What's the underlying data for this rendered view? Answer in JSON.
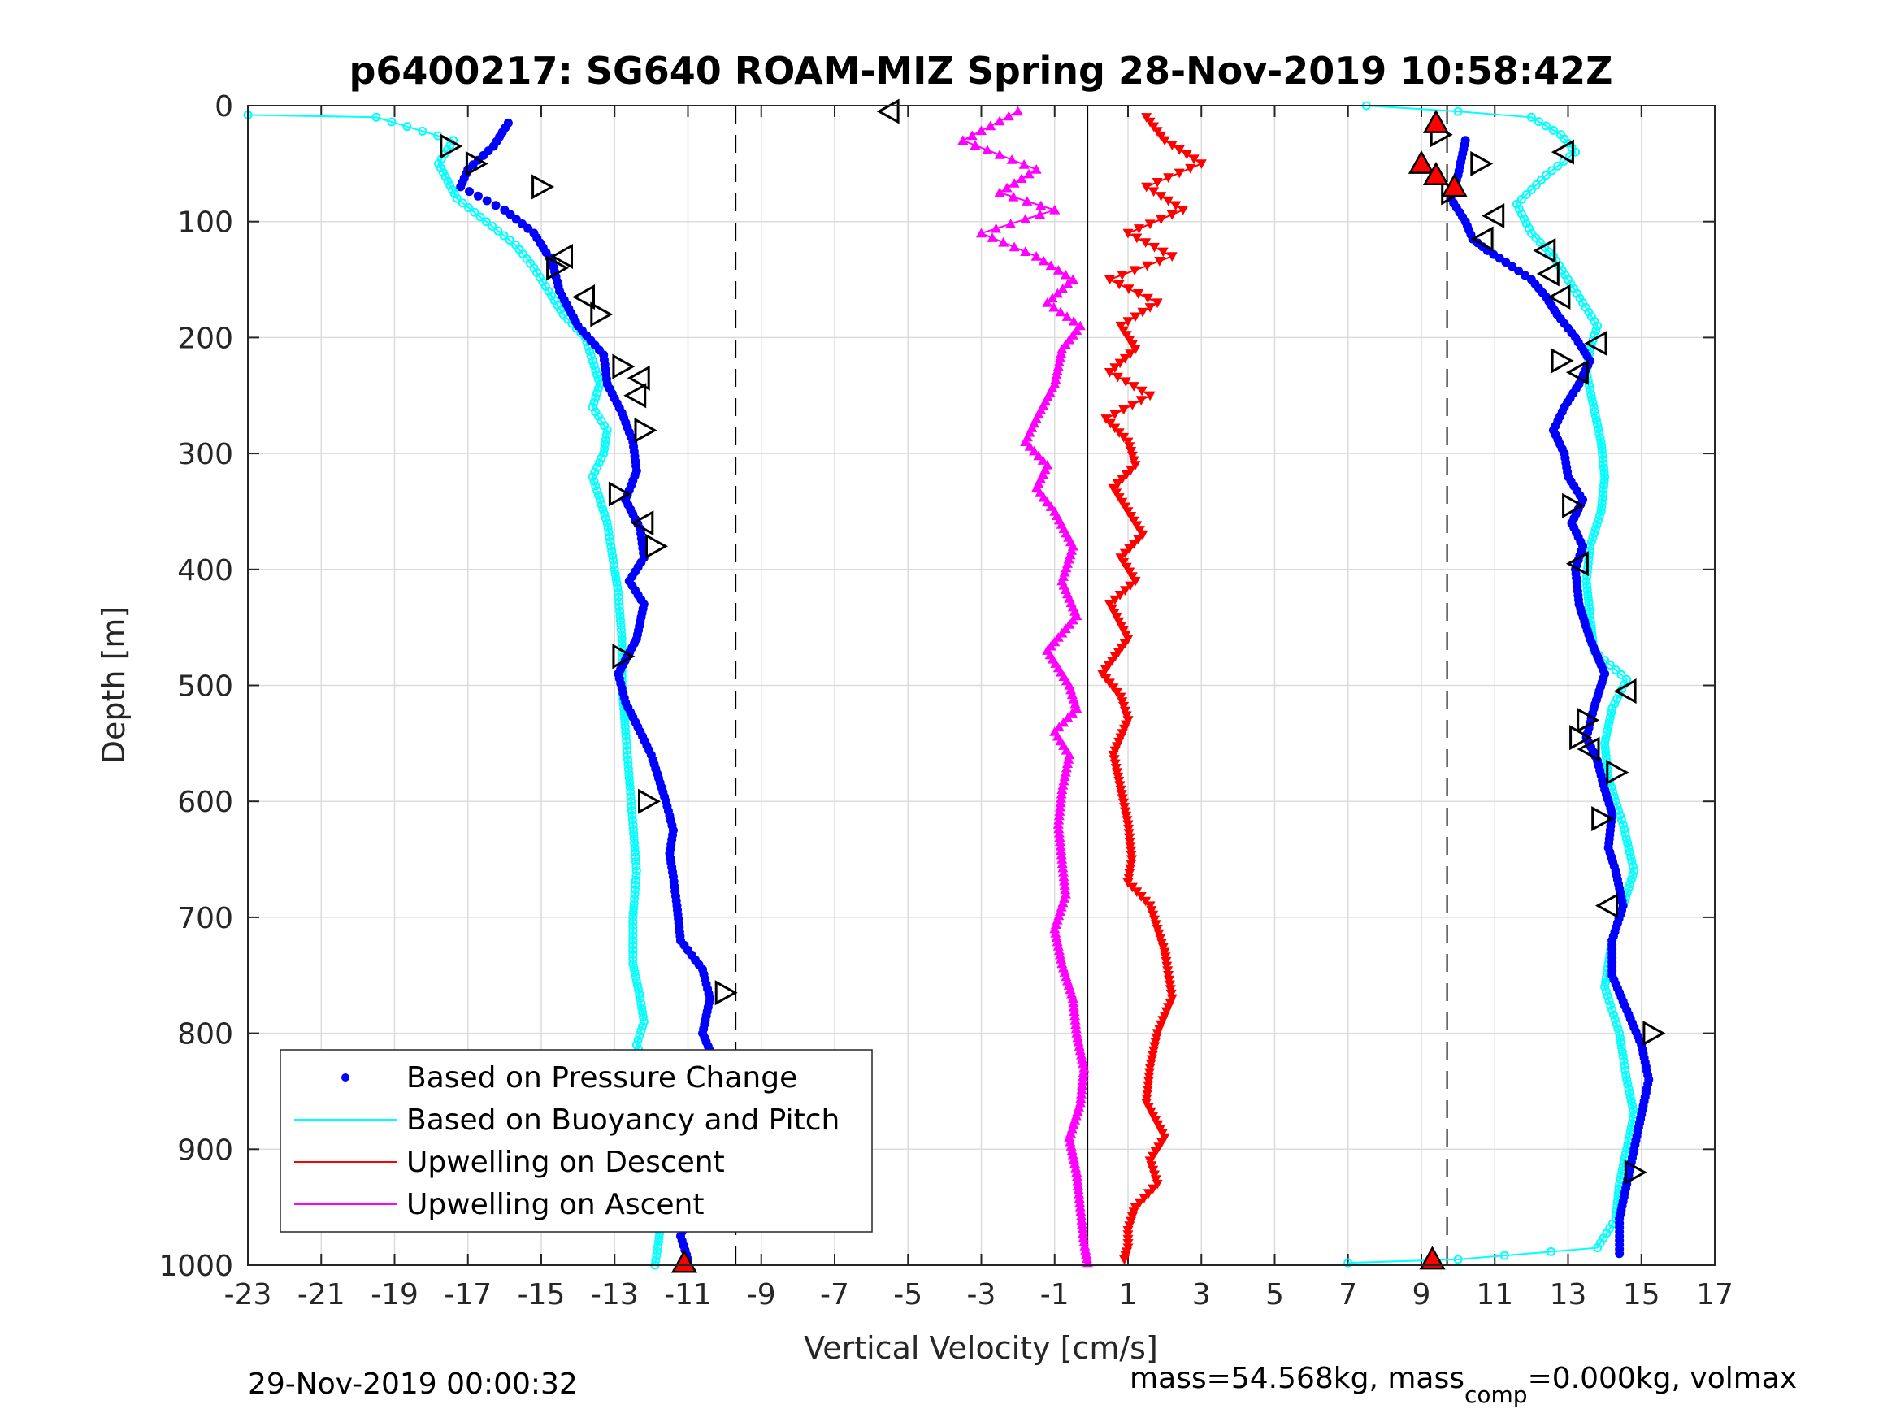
{
  "chart_data": {
    "type": "scatter",
    "title": "p6400217: SG640 ROAM-MIZ Spring 28-Nov-2019 10:58:42Z",
    "xlabel": "Vertical Velocity [cm/s]",
    "ylabel": "Depth [m]",
    "xlim": [
      -23,
      17
    ],
    "ylim": [
      1000,
      0
    ],
    "y_reversed": true,
    "grid": true,
    "x_ticks": [
      "-23",
      "-21",
      "-19",
      "-17",
      "-15",
      "-13",
      "-11",
      "-9",
      "-7",
      "-5",
      "-3",
      "-1",
      "1",
      "3",
      "5",
      "7",
      "9",
      "11",
      "13",
      "15",
      "17"
    ],
    "y_ticks": [
      "0",
      "100",
      "200",
      "300",
      "400",
      "500",
      "600",
      "700",
      "800",
      "900",
      "1000"
    ],
    "legend_position": "bottom-left",
    "reference_lines": {
      "dashed": [
        -9.7,
        9.7
      ],
      "solid": [
        -0.1
      ]
    },
    "series": [
      {
        "name": "Based on Pressure Change",
        "style": "dots",
        "color": "#0000ff",
        "segments": [
          {
            "x": [
              -15.9,
              -16.3,
              -17.0,
              -17.2,
              -16.0,
              -15.2,
              -14.7,
              -14.5,
              -14.0,
              -13.3,
              -13.2,
              -12.8,
              -12.5,
              -12.4,
              -12.7,
              -12.3,
              -12.2,
              -12.6,
              -12.2,
              -12.4,
              -12.9,
              -12.7,
              -12.3,
              -12.0,
              -11.6,
              -11.4,
              -11.5,
              -11.4,
              -11.3,
              -11.2,
              -10.6,
              -10.4,
              -10.6,
              -10.2,
              -10.0,
              -10.6,
              -11.0,
              -10.9,
              -11.2,
              -11.0
            ],
            "y": [
              15,
              35,
              55,
              70,
              90,
              110,
              135,
              160,
              190,
              215,
              240,
              265,
              290,
              315,
              340,
              365,
              390,
              410,
              430,
              460,
              490,
              515,
              540,
              560,
              600,
              625,
              645,
              665,
              690,
              720,
              745,
              770,
              800,
              830,
              860,
              880,
              920,
              950,
              975,
              995
            ]
          },
          {
            "x": [
              10.2,
              10.0,
              9.8,
              10.2,
              10.4,
              10.8,
              11.3,
              12.0,
              12.4,
              12.7,
              13.2,
              13.6,
              13.3,
              12.9,
              12.6,
              12.9,
              13.0,
              13.4,
              13.1,
              13.4,
              13.2,
              13.3,
              13.6,
              14.0,
              13.7,
              13.5,
              13.8,
              14.0,
              14.2,
              14.1,
              14.3,
              14.5,
              14.2,
              14.2,
              14.6,
              15.0,
              15.2,
              15.0,
              14.8,
              14.6,
              14.4,
              14.4
            ],
            "y": [
              30,
              60,
              80,
              100,
              115,
              125,
              135,
              150,
              165,
              180,
              200,
              220,
              240,
              260,
              280,
              300,
              320,
              340,
              360,
              380,
              400,
              430,
              460,
              490,
              520,
              545,
              565,
              590,
              610,
              640,
              660,
              690,
              720,
              750,
              780,
              810,
              840,
              870,
              900,
              930,
              960,
              990
            ]
          }
        ]
      },
      {
        "name": "Based on Buoyancy and Pitch",
        "style": "line-circles",
        "color": "#00ffff",
        "segments": [
          {
            "x": [
              -23.0,
              -19.5,
              -17.4,
              -17.8,
              -17.3,
              -16.5,
              -15.7,
              -15.2,
              -14.8,
              -14.4,
              -13.8,
              -13.6,
              -13.4,
              -13.6,
              -13.2,
              -13.3,
              -13.6,
              -13.4,
              -13.2,
              -13.1,
              -13.0,
              -12.9,
              -12.8,
              -12.8,
              -12.7,
              -12.6,
              -12.5,
              -12.4,
              -12.5,
              -12.5,
              -12.3,
              -12.2,
              -12.4,
              -12.0,
              -11.9,
              -11.8,
              -11.7,
              -11.8,
              -11.9
            ],
            "y": [
              8,
              10,
              30,
              50,
              80,
              100,
              120,
              140,
              160,
              180,
              200,
              220,
              240,
              260,
              280,
              300,
              320,
              340,
              360,
              380,
              400,
              420,
              460,
              500,
              540,
              580,
              620,
              660,
              700,
              740,
              770,
              790,
              810,
              840,
              880,
              920,
              950,
              980,
              1000
            ]
          },
          {
            "x": [
              7.5,
              10.0,
              12.0,
              12.8,
              13.2,
              12.4,
              11.6,
              12.0,
              12.6,
              13.0,
              13.4,
              13.8,
              13.6,
              13.5,
              13.7,
              13.9,
              14.0,
              13.9,
              13.6,
              13.5,
              13.6,
              13.7,
              14.6,
              14.2,
              14.0,
              14.1,
              14.5,
              14.8,
              14.5,
              14.2,
              14.0,
              14.4,
              14.6,
              14.8,
              14.6,
              14.4,
              14.3,
              13.8,
              10.0,
              7.0
            ],
            "y": [
              0,
              5,
              10,
              25,
              40,
              60,
              85,
              110,
              130,
              150,
              170,
              190,
              210,
              230,
              260,
              290,
              320,
              350,
              380,
              410,
              440,
              470,
              495,
              520,
              550,
              580,
              620,
              660,
              690,
              720,
              760,
              800,
              840,
              870,
              900,
              930,
              960,
              985,
              995,
              998
            ]
          }
        ]
      },
      {
        "name": "Upwelling on Descent",
        "style": "line-triangles-down",
        "color": "#ff0000",
        "segments": [
          {
            "x": [
              1.5,
              2.0,
              3.0,
              1.5,
              2.5,
              1.0,
              2.2,
              0.5,
              1.8,
              0.8,
              1.2,
              0.5,
              1.6,
              0.4,
              1.0,
              1.2,
              0.6,
              1.0,
              1.4,
              0.8,
              1.2,
              0.5,
              1.0,
              0.3,
              0.8,
              1.0,
              0.6,
              0.8,
              1.0,
              1.1,
              1.0,
              1.6,
              1.8,
              2.0,
              2.1,
              2.2,
              1.8,
              1.6,
              1.5,
              2.0,
              1.6,
              1.8,
              1.2,
              1.0,
              1.0,
              0.9
            ],
            "y": [
              10,
              30,
              50,
              70,
              90,
              110,
              130,
              150,
              170,
              190,
              210,
              230,
              250,
              270,
              290,
              310,
              330,
              350,
              370,
              390,
              410,
              430,
              460,
              490,
              510,
              530,
              560,
              590,
              620,
              650,
              670,
              690,
              710,
              730,
              750,
              770,
              800,
              830,
              860,
              890,
              910,
              930,
              950,
              970,
              985,
              995
            ]
          }
        ]
      },
      {
        "name": "Upwelling on Ascent",
        "style": "line-triangles-up",
        "color": "#ff00ff",
        "segments": [
          {
            "x": [
              -2.0,
              -3.5,
              -1.5,
              -2.5,
              -1.0,
              -3.0,
              -1.5,
              -0.5,
              -1.2,
              -0.3,
              -0.8,
              -1.0,
              -1.5,
              -1.8,
              -1.2,
              -1.5,
              -1.0,
              -0.5,
              -0.8,
              -0.4,
              -1.2,
              -0.6,
              -0.4,
              -1.0,
              -0.6,
              -0.8,
              -0.9,
              -0.8,
              -0.7,
              -1.0,
              -0.8,
              -0.5,
              -0.4,
              -0.2,
              -0.3,
              -0.6,
              -0.4,
              -0.3,
              -0.2,
              -0.1
            ],
            "y": [
              5,
              30,
              55,
              75,
              90,
              110,
              130,
              150,
              170,
              190,
              210,
              240,
              270,
              290,
              310,
              330,
              350,
              380,
              410,
              440,
              470,
              500,
              520,
              540,
              560,
              590,
              620,
              650,
              680,
              710,
              740,
              770,
              800,
              830,
              860,
              890,
              920,
              950,
              980,
              998
            ]
          }
        ]
      }
    ],
    "markers": {
      "open_triangles": [
        {
          "x": -17.5,
          "y": 35,
          "dir": "right"
        },
        {
          "x": -16.8,
          "y": 50,
          "dir": "right"
        },
        {
          "x": -15.0,
          "y": 70,
          "dir": "right"
        },
        {
          "x": -14.4,
          "y": 130,
          "dir": "left"
        },
        {
          "x": -14.6,
          "y": 140,
          "dir": "right"
        },
        {
          "x": -13.8,
          "y": 165,
          "dir": "left"
        },
        {
          "x": -13.4,
          "y": 180,
          "dir": "right"
        },
        {
          "x": -12.8,
          "y": 225,
          "dir": "right"
        },
        {
          "x": -12.3,
          "y": 235,
          "dir": "left"
        },
        {
          "x": -12.4,
          "y": 250,
          "dir": "left"
        },
        {
          "x": -12.2,
          "y": 280,
          "dir": "right"
        },
        {
          "x": -12.9,
          "y": 335,
          "dir": "right"
        },
        {
          "x": -12.2,
          "y": 360,
          "dir": "left"
        },
        {
          "x": -11.9,
          "y": 380,
          "dir": "right"
        },
        {
          "x": -12.8,
          "y": 475,
          "dir": "right"
        },
        {
          "x": -12.1,
          "y": 600,
          "dir": "right"
        },
        {
          "x": -10.0,
          "y": 765,
          "dir": "right"
        },
        {
          "x": -10.0,
          "y": 875,
          "dir": "right"
        },
        {
          "x": -5.5,
          "y": 5,
          "dir": "left"
        },
        {
          "x": 9.5,
          "y": 25,
          "dir": "right"
        },
        {
          "x": 10.6,
          "y": 50,
          "dir": "right"
        },
        {
          "x": 9.8,
          "y": 75,
          "dir": "right"
        },
        {
          "x": 11.0,
          "y": 95,
          "dir": "left"
        },
        {
          "x": 10.7,
          "y": 115,
          "dir": "left"
        },
        {
          "x": 12.9,
          "y": 40,
          "dir": "left"
        },
        {
          "x": 12.4,
          "y": 125,
          "dir": "left"
        },
        {
          "x": 12.5,
          "y": 145,
          "dir": "left"
        },
        {
          "x": 12.8,
          "y": 165,
          "dir": "left"
        },
        {
          "x": 13.8,
          "y": 205,
          "dir": "left"
        },
        {
          "x": 12.8,
          "y": 220,
          "dir": "right"
        },
        {
          "x": 13.3,
          "y": 230,
          "dir": "left"
        },
        {
          "x": 13.1,
          "y": 345,
          "dir": "right"
        },
        {
          "x": 13.3,
          "y": 395,
          "dir": "left"
        },
        {
          "x": 14.6,
          "y": 505,
          "dir": "left"
        },
        {
          "x": 13.5,
          "y": 530,
          "dir": "right"
        },
        {
          "x": 13.3,
          "y": 545,
          "dir": "right"
        },
        {
          "x": 13.6,
          "y": 555,
          "dir": "left"
        },
        {
          "x": 14.3,
          "y": 575,
          "dir": "right"
        },
        {
          "x": 13.9,
          "y": 615,
          "dir": "right"
        },
        {
          "x": 14.1,
          "y": 690,
          "dir": "left"
        },
        {
          "x": 15.3,
          "y": 800,
          "dir": "right"
        },
        {
          "x": 14.8,
          "y": 920,
          "dir": "right"
        }
      ],
      "filled_triangles": [
        {
          "x": 9.4,
          "y": 15
        },
        {
          "x": 9.0,
          "y": 50
        },
        {
          "x": 9.4,
          "y": 60
        },
        {
          "x": 9.9,
          "y": 70
        },
        {
          "x": -11.1,
          "y": 998
        },
        {
          "x": 9.3,
          "y": 995
        }
      ]
    },
    "footer": {
      "timestamp": "29-Nov-2019 00:00:32",
      "mass_prefix": "mass=54.568kg, mass",
      "mass_sub": "comp",
      "mass_suffix": "=0.000kg, volmax"
    }
  }
}
